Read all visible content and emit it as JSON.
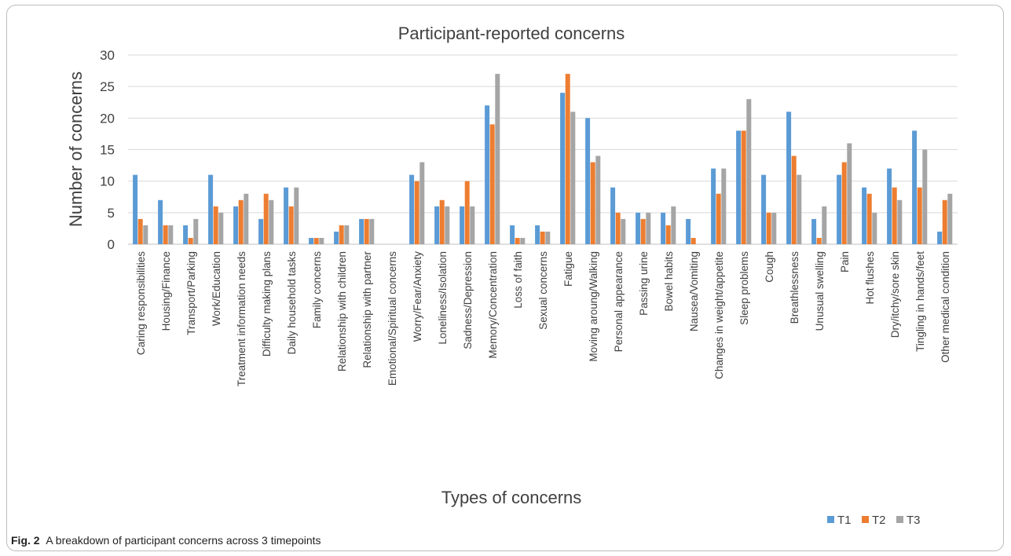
{
  "caption": {
    "label": "Fig. 2",
    "text": "A breakdown of participant concerns across 3 timepoints"
  },
  "colors": {
    "T1": "#5b9bd5",
    "T2": "#ed7d31",
    "T3": "#a5a5a5",
    "grid": "#d9d9d9",
    "text": "#404040"
  },
  "chart_data": {
    "type": "bar",
    "title": "Participant-reported concerns",
    "xlabel": "Types of concerns",
    "ylabel": "Number of concerns",
    "ylim": [
      0,
      30
    ],
    "yticks": [
      0,
      5,
      10,
      15,
      20,
      25,
      30
    ],
    "grid": true,
    "legend_position": "bottom-right",
    "categories": [
      "Caring responsibilities",
      "Housing/Finance",
      "Transport/Parking",
      "Work/Education",
      "Treatment information needs",
      "Difficulty making plans",
      "Daily household tasks",
      "Family concerns",
      "Relationship with children",
      "Relationship with partner",
      "Emotional/Spiritual concerns",
      "Worry/Fear/Anxiety",
      "Loneliness/Isolation",
      "Sadness/Depression",
      "Memory/Concentration",
      "Loss of faith",
      "Sexual concerns",
      "Fatigue",
      "Moving aroung/Walking",
      "Personal appearance",
      "Passing urine",
      "Bowel habits",
      "Nausea/Vomiting",
      "Changes in weight/appetite",
      "Sleep problems",
      "Cough",
      "Breathlessness",
      "Unusual swelling",
      "Pain",
      "Hot flushes",
      "Dry/itchy/sore skin",
      "Tingling in hands/feet",
      "Other medical condition"
    ],
    "series": [
      {
        "name": "T1",
        "values": [
          11,
          7,
          3,
          11,
          6,
          4,
          9,
          1,
          2,
          4,
          0,
          11,
          6,
          6,
          22,
          3,
          3,
          24,
          20,
          9,
          5,
          5,
          4,
          12,
          18,
          11,
          21,
          4,
          11,
          9,
          12,
          18,
          2
        ]
      },
      {
        "name": "T2",
        "values": [
          4,
          3,
          1,
          6,
          7,
          8,
          6,
          1,
          3,
          4,
          0,
          10,
          7,
          10,
          19,
          1,
          2,
          27,
          13,
          5,
          4,
          3,
          1,
          8,
          18,
          5,
          14,
          1,
          13,
          8,
          9,
          9,
          7
        ]
      },
      {
        "name": "T3",
        "values": [
          3,
          3,
          4,
          5,
          8,
          7,
          9,
          1,
          3,
          4,
          0,
          13,
          6,
          6,
          27,
          1,
          2,
          21,
          14,
          4,
          5,
          6,
          0,
          12,
          23,
          5,
          11,
          6,
          16,
          5,
          7,
          15,
          8
        ]
      }
    ]
  }
}
